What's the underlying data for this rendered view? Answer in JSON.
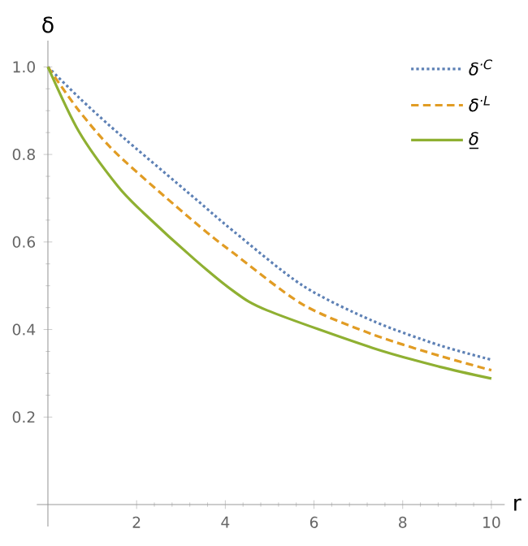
{
  "chart_data": {
    "type": "line",
    "xlabel": "r",
    "ylabel": "δ",
    "legend": "top right",
    "xlim": [
      -0.25,
      10.3
    ],
    "ylim": [
      -0.05,
      1.06
    ],
    "xticks": [
      2,
      4,
      6,
      8,
      10
    ],
    "yticks": [
      0.2,
      0.4,
      0.6,
      0.8,
      {
        "value": 1,
        "label": "1.0"
      }
    ],
    "series": [
      {
        "name": "δ$^{·C}$",
        "color": "#5e81b5",
        "line_style": "dotted",
        "x": [
          0,
          0.7,
          1.57,
          3.31,
          4.18,
          5.75,
          7.32,
          8.83,
          10
        ],
        "values": [
          1,
          0.93,
          0.85,
          0.7,
          0.625,
          0.5,
          0.42,
          0.364,
          0.331
        ]
      },
      {
        "name": "δ$^{·L}$",
        "color": "#e19c24",
        "line_style": "dashed",
        "x": [
          0,
          0.7,
          1.57,
          3.31,
          4.18,
          5.75,
          7.32,
          8.83,
          10
        ],
        "values": [
          1,
          0.9,
          0.8,
          0.645,
          0.575,
          0.457,
          0.389,
          0.34,
          0.307
        ]
      },
      {
        "name": "δ̲",
        "color": "#8fb032",
        "line_style": "solid",
        "x": [
          0,
          0.7,
          1.57,
          2.15,
          3.31,
          4.18,
          4.94,
          7.32,
          8.83,
          10
        ],
        "values": [
          1,
          0.852,
          0.728,
          0.667,
          0.56,
          0.488,
          0.444,
          0.358,
          0.315,
          0.288
        ]
      }
    ]
  }
}
